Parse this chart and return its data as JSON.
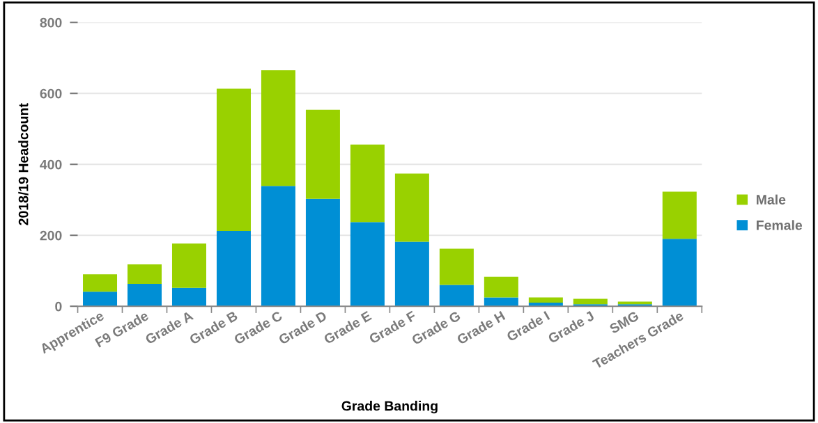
{
  "chart_data": {
    "type": "bar",
    "stacked": true,
    "xlabel": "Grade Banding",
    "ylabel": "2018/19 Headcount",
    "categories": [
      "Apprentice",
      "F9 Grade",
      "Grade A",
      "Grade B",
      "Grade C",
      "Grade D",
      "Grade E",
      "Grade F",
      "Grade G",
      "Grade H",
      "Grade I",
      "Grade J",
      "SMG",
      "Teachers Grade"
    ],
    "series": [
      {
        "name": "Female",
        "color": "#008fd5",
        "values": [
          41,
          63,
          52,
          212,
          339,
          303,
          237,
          182,
          60,
          25,
          10,
          6,
          6,
          190
        ]
      },
      {
        "name": "Male",
        "color": "#99d100",
        "values": [
          49,
          55,
          125,
          401,
          326,
          251,
          219,
          192,
          102,
          58,
          15,
          15,
          7,
          133
        ]
      }
    ],
    "ylim": [
      0,
      800
    ],
    "yticks": [
      0,
      200,
      400,
      600,
      800
    ],
    "grid": "y",
    "legend": "right"
  }
}
